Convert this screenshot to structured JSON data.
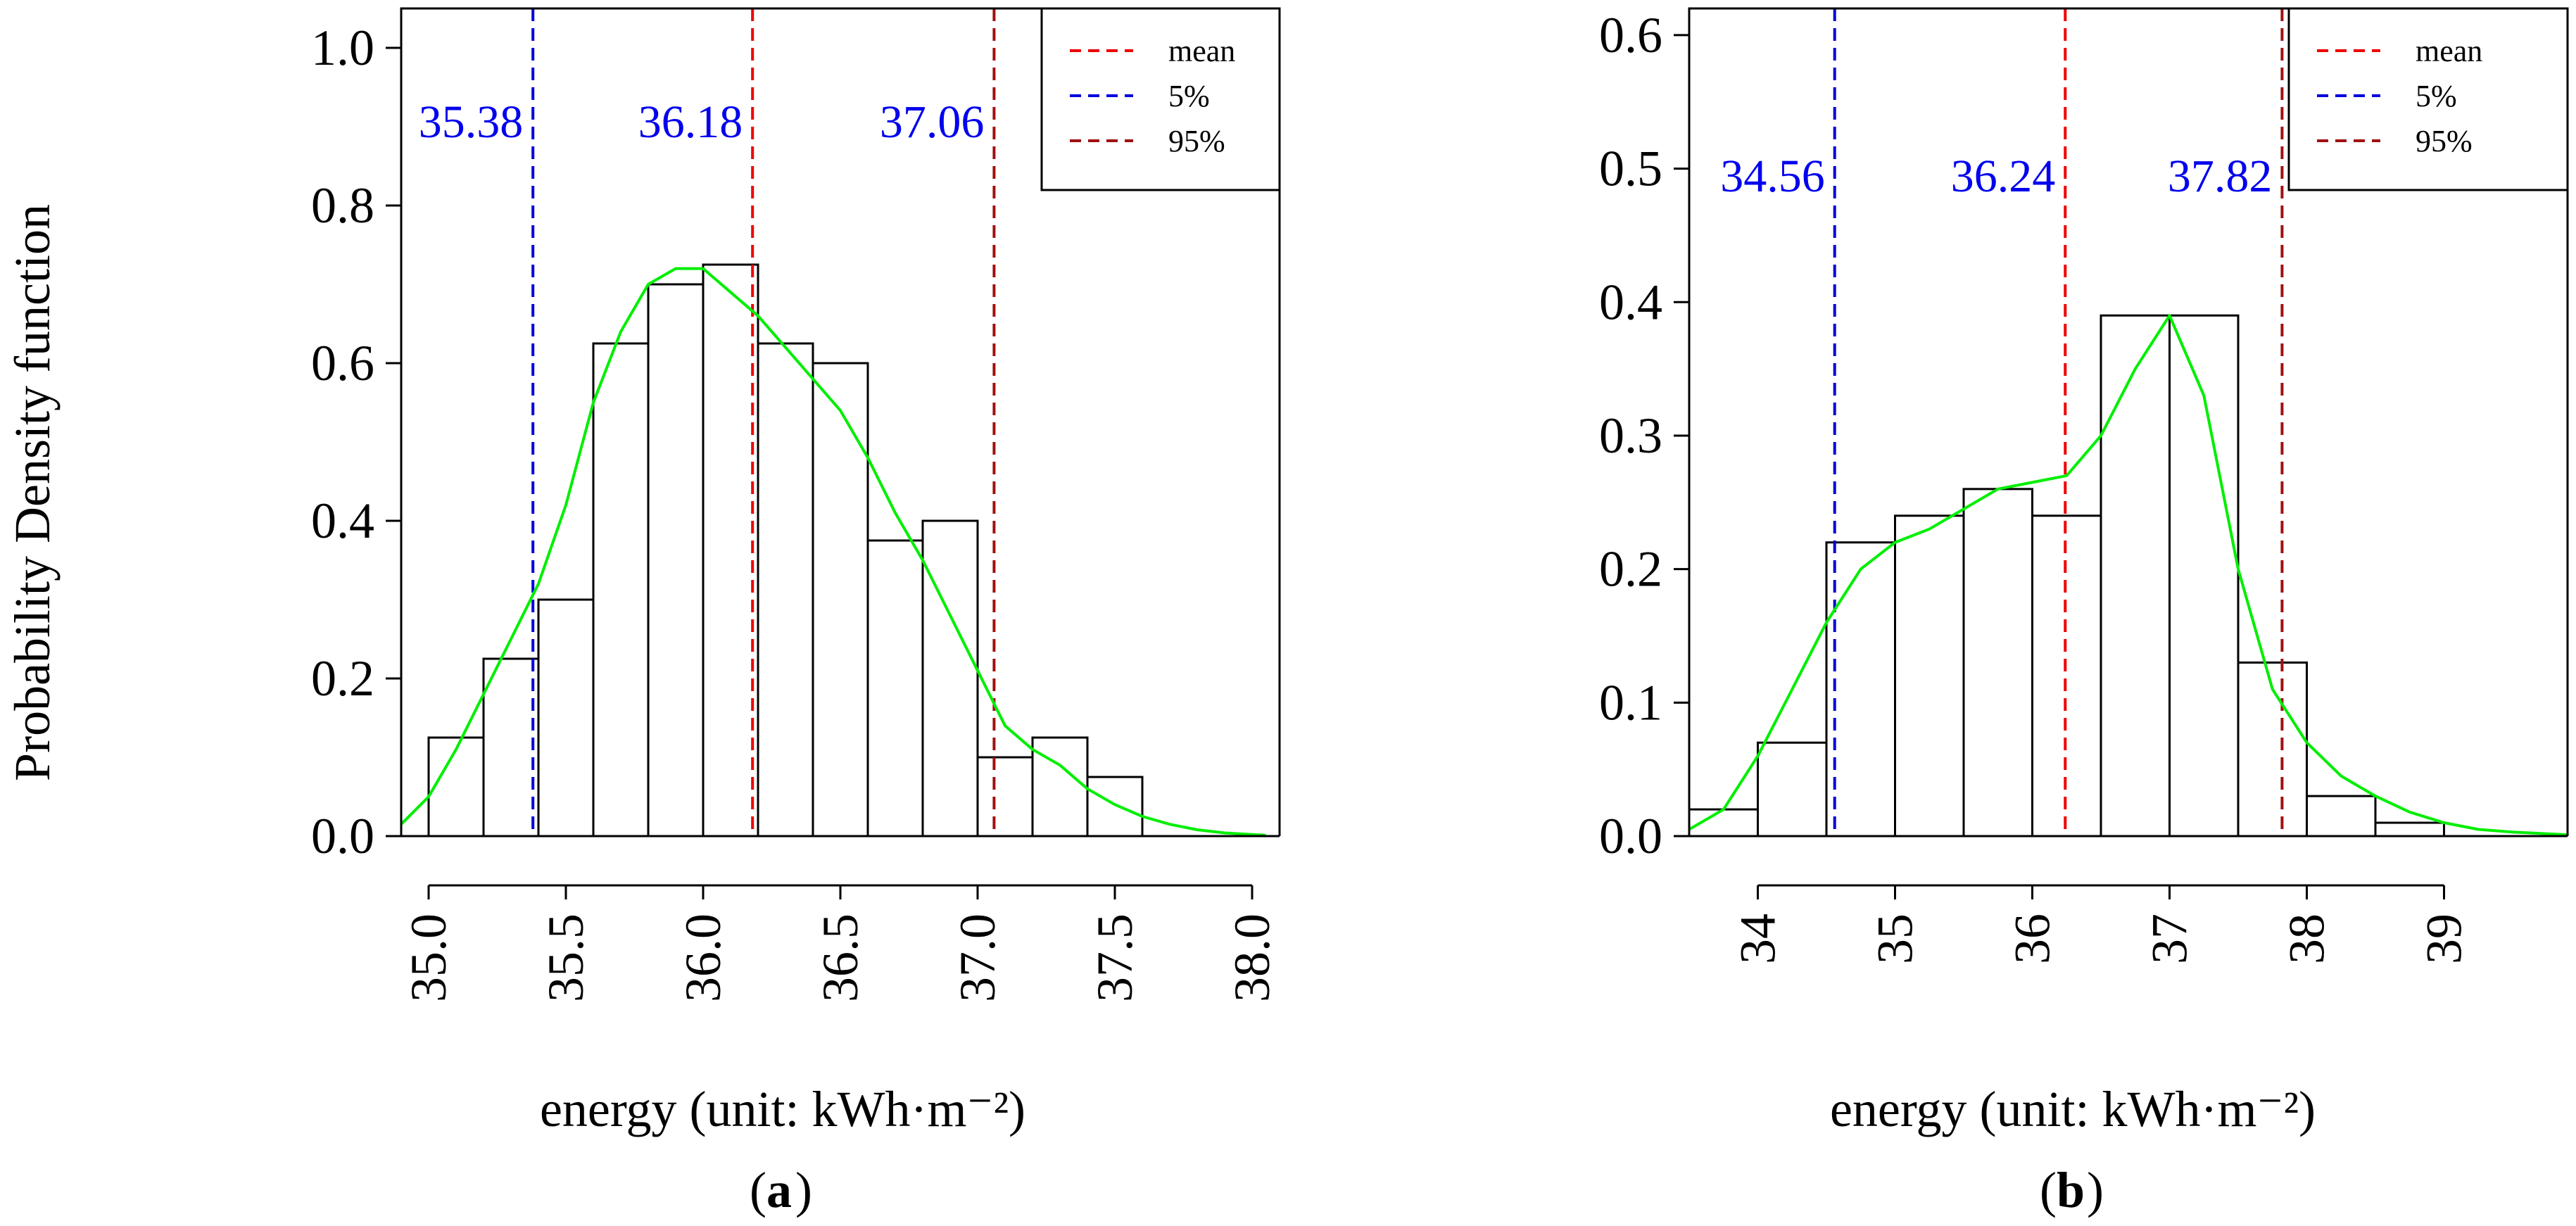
{
  "figure": {
    "ylabel": "Probability Density function",
    "colors": {
      "histogram_edge": "#000000",
      "histogram_fill": "#ffffff",
      "density_curve": "#00ee00",
      "mean_line": "#ee0000",
      "p5_line": "#0000dd",
      "p95_line": "#a01010",
      "stat_text": "#0000ee"
    }
  },
  "chart_data": [
    {
      "type": "bar",
      "panel": "a",
      "panel_label": "a",
      "xlabel": "energy (unit: kWh·m⁻²)",
      "ylabel": "Probability Density function",
      "xlim": [
        34.9,
        38.1
      ],
      "ylim": [
        0.0,
        1.05
      ],
      "xticks": [
        35.0,
        35.5,
        36.0,
        36.5,
        37.0,
        37.5,
        38.0
      ],
      "xtick_labels": [
        "35.0",
        "35.5",
        "36.0",
        "36.5",
        "37.0",
        "37.5",
        "38.0"
      ],
      "yticks": [
        0.0,
        0.2,
        0.4,
        0.6,
        0.8,
        1.0
      ],
      "ytick_labels": [
        "0.0",
        "0.2",
        "0.4",
        "0.6",
        "0.8",
        "1.0"
      ],
      "bin_edges": [
        35.0,
        35.2,
        35.4,
        35.6,
        35.8,
        36.0,
        36.2,
        36.4,
        36.6,
        36.8,
        37.0,
        37.2,
        37.4,
        37.6
      ],
      "densities": [
        0.125,
        0.225,
        0.3,
        0.625,
        0.7,
        0.725,
        0.625,
        0.6,
        0.375,
        0.4,
        0.1,
        0.125,
        0.075
      ],
      "density_curve": {
        "x": [
          34.9,
          35.0,
          35.1,
          35.2,
          35.3,
          35.4,
          35.5,
          35.6,
          35.7,
          35.8,
          35.9,
          36.0,
          36.1,
          36.2,
          36.3,
          36.4,
          36.5,
          36.6,
          36.7,
          36.8,
          36.9,
          37.0,
          37.1,
          37.2,
          37.3,
          37.4,
          37.5,
          37.6,
          37.7,
          37.8,
          37.9,
          38.0,
          38.05
        ],
        "y": [
          0.015,
          0.05,
          0.11,
          0.18,
          0.25,
          0.32,
          0.42,
          0.55,
          0.64,
          0.7,
          0.72,
          0.72,
          0.69,
          0.66,
          0.62,
          0.58,
          0.54,
          0.48,
          0.41,
          0.35,
          0.28,
          0.21,
          0.14,
          0.11,
          0.09,
          0.06,
          0.04,
          0.025,
          0.015,
          0.008,
          0.004,
          0.002,
          0.001
        ]
      },
      "lines": {
        "mean": 36.18,
        "p5": 35.38,
        "p95": 37.06
      },
      "stat_labels": [
        "35.38",
        "36.18",
        "37.06"
      ],
      "legend": {
        "placement": "top-right",
        "entries": [
          "mean",
          "5%",
          "95%"
        ]
      }
    },
    {
      "type": "bar",
      "panel": "b",
      "panel_label": "b",
      "xlabel": "energy (unit: kWh·m⁻²)",
      "ylabel": "Probability Density function",
      "xlim": [
        33.5,
        39.9
      ],
      "ylim": [
        0.0,
        0.62
      ],
      "xticks": [
        34,
        35,
        36,
        37,
        38,
        39
      ],
      "xtick_labels": [
        "34",
        "35",
        "36",
        "37",
        "38",
        "39"
      ],
      "yticks": [
        0.0,
        0.1,
        0.2,
        0.3,
        0.4,
        0.5,
        0.6
      ],
      "ytick_labels": [
        "0.0",
        "0.1",
        "0.2",
        "0.3",
        "0.4",
        "0.5",
        "0.6"
      ],
      "bin_edges": [
        33.5,
        34.0,
        34.5,
        35.0,
        35.5,
        36.0,
        36.5,
        37.0,
        37.5,
        38.0,
        38.5,
        39.0
      ],
      "densities": [
        0.02,
        0.07,
        0.22,
        0.24,
        0.26,
        0.24,
        0.39,
        0.39,
        0.13,
        0.03,
        0.01
      ],
      "density_curve": {
        "x": [
          33.5,
          33.75,
          34.0,
          34.25,
          34.5,
          34.75,
          35.0,
          35.25,
          35.5,
          35.75,
          36.0,
          36.25,
          36.5,
          36.75,
          37.0,
          37.25,
          37.5,
          37.75,
          38.0,
          38.25,
          38.5,
          38.75,
          39.0,
          39.25,
          39.5,
          39.9
        ],
        "y": [
          0.005,
          0.02,
          0.06,
          0.11,
          0.16,
          0.2,
          0.22,
          0.23,
          0.245,
          0.26,
          0.265,
          0.27,
          0.3,
          0.35,
          0.39,
          0.33,
          0.2,
          0.11,
          0.07,
          0.045,
          0.03,
          0.018,
          0.01,
          0.005,
          0.003,
          0.001
        ]
      },
      "lines": {
        "mean": 36.24,
        "p5": 34.56,
        "p95": 37.82
      },
      "stat_labels": [
        "34.56",
        "36.24",
        "37.82"
      ],
      "legend": {
        "placement": "top-right",
        "entries": [
          "mean",
          "5%",
          "95%"
        ]
      }
    }
  ]
}
